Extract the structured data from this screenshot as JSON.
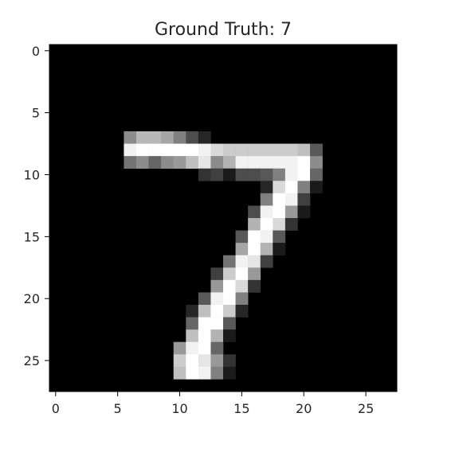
{
  "chart_data": {
    "type": "heatmap",
    "title": "Ground Truth: 7",
    "xlabel": "",
    "ylabel": "",
    "colormap": "gray",
    "grid": false,
    "rows": 28,
    "cols": 28,
    "x_ticks": [
      0,
      5,
      10,
      15,
      20,
      25
    ],
    "y_ticks": [
      0,
      5,
      10,
      15,
      20,
      25
    ],
    "xlim": [
      -0.5,
      27.5
    ],
    "ylim": [
      27.5,
      -0.5
    ],
    "pixels": [
      {
        "r": 7,
        "c": 6,
        "v": 0.55
      },
      {
        "r": 7,
        "c": 7,
        "v": 0.72
      },
      {
        "r": 7,
        "c": 8,
        "v": 0.72
      },
      {
        "r": 7,
        "c": 9,
        "v": 0.65
      },
      {
        "r": 7,
        "c": 10,
        "v": 0.5
      },
      {
        "r": 7,
        "c": 11,
        "v": 0.3
      },
      {
        "r": 7,
        "c": 12,
        "v": 0.15
      },
      {
        "r": 8,
        "c": 6,
        "v": 0.95
      },
      {
        "r": 8,
        "c": 7,
        "v": 1.0
      },
      {
        "r": 8,
        "c": 8,
        "v": 1.0
      },
      {
        "r": 8,
        "c": 9,
        "v": 1.0
      },
      {
        "r": 8,
        "c": 10,
        "v": 1.0
      },
      {
        "r": 8,
        "c": 11,
        "v": 1.0
      },
      {
        "r": 8,
        "c": 12,
        "v": 0.95
      },
      {
        "r": 8,
        "c": 13,
        "v": 0.85
      },
      {
        "r": 8,
        "c": 14,
        "v": 0.8
      },
      {
        "r": 8,
        "c": 15,
        "v": 0.8
      },
      {
        "r": 8,
        "c": 16,
        "v": 0.8
      },
      {
        "r": 8,
        "c": 17,
        "v": 0.8
      },
      {
        "r": 8,
        "c": 18,
        "v": 0.8
      },
      {
        "r": 8,
        "c": 19,
        "v": 0.8
      },
      {
        "r": 8,
        "c": 20,
        "v": 0.75
      },
      {
        "r": 8,
        "c": 21,
        "v": 0.35
      },
      {
        "r": 9,
        "c": 6,
        "v": 0.45
      },
      {
        "r": 9,
        "c": 7,
        "v": 0.55
      },
      {
        "r": 9,
        "c": 8,
        "v": 0.4
      },
      {
        "r": 9,
        "c": 9,
        "v": 0.55
      },
      {
        "r": 9,
        "c": 10,
        "v": 0.6
      },
      {
        "r": 9,
        "c": 11,
        "v": 0.75
      },
      {
        "r": 9,
        "c": 12,
        "v": 0.9
      },
      {
        "r": 9,
        "c": 13,
        "v": 0.55
      },
      {
        "r": 9,
        "c": 14,
        "v": 0.7
      },
      {
        "r": 9,
        "c": 15,
        "v": 0.95
      },
      {
        "r": 9,
        "c": 16,
        "v": 0.95
      },
      {
        "r": 9,
        "c": 17,
        "v": 0.95
      },
      {
        "r": 9,
        "c": 18,
        "v": 0.95
      },
      {
        "r": 9,
        "c": 19,
        "v": 0.95
      },
      {
        "r": 9,
        "c": 20,
        "v": 1.0
      },
      {
        "r": 9,
        "c": 21,
        "v": 0.55
      },
      {
        "r": 10,
        "c": 12,
        "v": 0.2
      },
      {
        "r": 10,
        "c": 13,
        "v": 0.25
      },
      {
        "r": 10,
        "c": 14,
        "v": 0.1
      },
      {
        "r": 10,
        "c": 15,
        "v": 0.3
      },
      {
        "r": 10,
        "c": 16,
        "v": 0.3
      },
      {
        "r": 10,
        "c": 17,
        "v": 0.35
      },
      {
        "r": 10,
        "c": 18,
        "v": 0.5
      },
      {
        "r": 10,
        "c": 19,
        "v": 0.95
      },
      {
        "r": 10,
        "c": 20,
        "v": 1.0
      },
      {
        "r": 10,
        "c": 21,
        "v": 0.4
      },
      {
        "r": 11,
        "c": 17,
        "v": 0.15
      },
      {
        "r": 11,
        "c": 18,
        "v": 0.85
      },
      {
        "r": 11,
        "c": 19,
        "v": 1.0
      },
      {
        "r": 11,
        "c": 20,
        "v": 0.5
      },
      {
        "r": 11,
        "c": 21,
        "v": 0.1
      },
      {
        "r": 12,
        "c": 17,
        "v": 0.5
      },
      {
        "r": 12,
        "c": 18,
        "v": 1.0
      },
      {
        "r": 12,
        "c": 19,
        "v": 0.95
      },
      {
        "r": 12,
        "c": 20,
        "v": 0.25
      },
      {
        "r": 13,
        "c": 16,
        "v": 0.3
      },
      {
        "r": 13,
        "c": 17,
        "v": 0.95
      },
      {
        "r": 13,
        "c": 18,
        "v": 1.0
      },
      {
        "r": 13,
        "c": 19,
        "v": 0.6
      },
      {
        "r": 13,
        "c": 20,
        "v": 0.1
      },
      {
        "r": 14,
        "c": 16,
        "v": 0.7
      },
      {
        "r": 14,
        "c": 17,
        "v": 1.0
      },
      {
        "r": 14,
        "c": 18,
        "v": 0.85
      },
      {
        "r": 14,
        "c": 19,
        "v": 0.2
      },
      {
        "r": 15,
        "c": 15,
        "v": 0.35
      },
      {
        "r": 15,
        "c": 16,
        "v": 1.0
      },
      {
        "r": 15,
        "c": 17,
        "v": 0.95
      },
      {
        "r": 15,
        "c": 18,
        "v": 0.35
      },
      {
        "r": 16,
        "c": 15,
        "v": 0.65
      },
      {
        "r": 16,
        "c": 16,
        "v": 1.0
      },
      {
        "r": 16,
        "c": 17,
        "v": 0.7
      },
      {
        "r": 16,
        "c": 18,
        "v": 0.1
      },
      {
        "r": 17,
        "c": 14,
        "v": 0.45
      },
      {
        "r": 17,
        "c": 15,
        "v": 0.95
      },
      {
        "r": 17,
        "c": 16,
        "v": 0.9
      },
      {
        "r": 17,
        "c": 17,
        "v": 0.25
      },
      {
        "r": 18,
        "c": 13,
        "v": 0.25
      },
      {
        "r": 18,
        "c": 14,
        "v": 0.8
      },
      {
        "r": 18,
        "c": 15,
        "v": 1.0
      },
      {
        "r": 18,
        "c": 16,
        "v": 0.6
      },
      {
        "r": 19,
        "c": 13,
        "v": 0.6
      },
      {
        "r": 19,
        "c": 14,
        "v": 1.0
      },
      {
        "r": 19,
        "c": 15,
        "v": 0.85
      },
      {
        "r": 19,
        "c": 16,
        "v": 0.2
      },
      {
        "r": 20,
        "c": 12,
        "v": 0.35
      },
      {
        "r": 20,
        "c": 13,
        "v": 0.95
      },
      {
        "r": 20,
        "c": 14,
        "v": 1.0
      },
      {
        "r": 20,
        "c": 15,
        "v": 0.5
      },
      {
        "r": 21,
        "c": 11,
        "v": 0.15
      },
      {
        "r": 21,
        "c": 12,
        "v": 0.75
      },
      {
        "r": 21,
        "c": 13,
        "v": 1.0
      },
      {
        "r": 21,
        "c": 14,
        "v": 0.8
      },
      {
        "r": 21,
        "c": 15,
        "v": 0.15
      },
      {
        "r": 22,
        "c": 11,
        "v": 0.4
      },
      {
        "r": 22,
        "c": 12,
        "v": 1.0
      },
      {
        "r": 22,
        "c": 13,
        "v": 1.0
      },
      {
        "r": 22,
        "c": 14,
        "v": 0.35
      },
      {
        "r": 23,
        "c": 11,
        "v": 0.75
      },
      {
        "r": 23,
        "c": 12,
        "v": 1.0
      },
      {
        "r": 23,
        "c": 13,
        "v": 0.7
      },
      {
        "r": 23,
        "c": 14,
        "v": 0.1
      },
      {
        "r": 24,
        "c": 10,
        "v": 0.6
      },
      {
        "r": 24,
        "c": 11,
        "v": 0.95
      },
      {
        "r": 24,
        "c": 12,
        "v": 1.0
      },
      {
        "r": 24,
        "c": 13,
        "v": 0.4
      },
      {
        "r": 25,
        "c": 10,
        "v": 0.8
      },
      {
        "r": 25,
        "c": 11,
        "v": 1.0
      },
      {
        "r": 25,
        "c": 12,
        "v": 0.9
      },
      {
        "r": 25,
        "c": 13,
        "v": 0.6
      },
      {
        "r": 25,
        "c": 14,
        "v": 0.2
      },
      {
        "r": 26,
        "c": 10,
        "v": 0.75
      },
      {
        "r": 26,
        "c": 11,
        "v": 1.0
      },
      {
        "r": 26,
        "c": 12,
        "v": 0.95
      },
      {
        "r": 26,
        "c": 13,
        "v": 0.5
      },
      {
        "r": 26,
        "c": 14,
        "v": 0.1
      }
    ]
  }
}
